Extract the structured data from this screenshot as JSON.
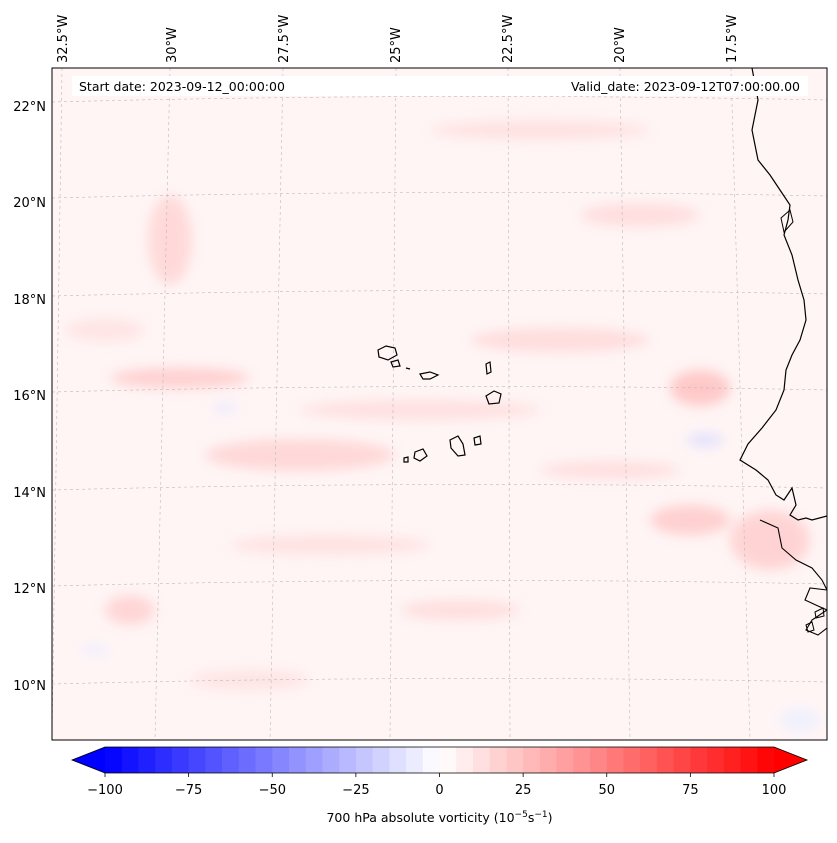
{
  "map": {
    "start_label": "Start date: 2023-09-12_00:00:00",
    "valid_label": "Valid_date: 2023-09-12T07:00:00.00",
    "lon_labels": [
      "32.5°W",
      "30°W",
      "27.5°W",
      "25°W",
      "22.5°W",
      "20°W",
      "17.5°W"
    ],
    "lat_labels": [
      "22°N",
      "20°N",
      "18°N",
      "16°N",
      "14°N",
      "12°N",
      "10°N"
    ],
    "colors": {
      "frame": "#000000",
      "gridline": "#bbbbbb",
      "coast": "#000000",
      "field_base": "#fff5f5"
    }
  },
  "colorbar": {
    "tick_labels": [
      "−100",
      "−75",
      "−50",
      "−25",
      "0",
      "25",
      "50",
      "75",
      "100"
    ],
    "ticks": [
      -100,
      -75,
      -50,
      -25,
      0,
      25,
      50,
      75,
      100
    ],
    "min": -100,
    "max": 100,
    "label": "700 hPa absolute vorticity (10",
    "label_exp1": "−5",
    "label_mid": "s",
    "label_exp2": "−1",
    "label_end": ")",
    "colors": {
      "negative": "#0000ff",
      "zero": "#ffffff",
      "positive": "#ff0000"
    }
  }
}
